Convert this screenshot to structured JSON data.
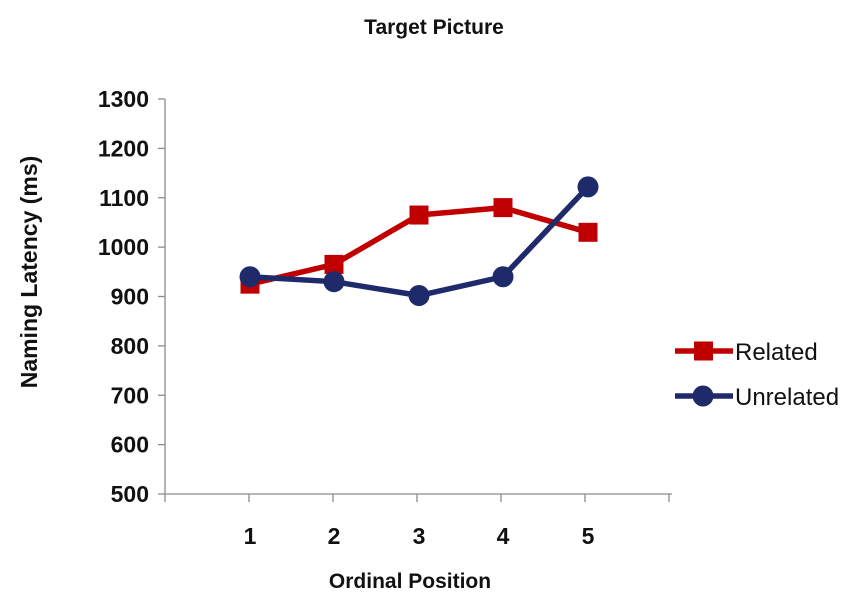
{
  "chart_data": {
    "type": "line",
    "title": "Target Picture",
    "xlabel": "Ordinal Position",
    "ylabel": "Naming Latency (ms)",
    "categories": [
      "1",
      "2",
      "3",
      "4",
      "5"
    ],
    "ylim": [
      500,
      1300
    ],
    "yticks": [
      "500",
      "600",
      "700",
      "800",
      "900",
      "1000",
      "1100",
      "1200",
      "1300"
    ],
    "grid": false,
    "legend_position": "right",
    "series": [
      {
        "name": "Related",
        "values": [
          925,
          965,
          1065,
          1080,
          1030
        ],
        "color": "#c00000",
        "marker": "square"
      },
      {
        "name": "Unrelated",
        "values": [
          940,
          930,
          902,
          940,
          1122
        ],
        "color": "#1f2a6b",
        "marker": "circle"
      }
    ]
  }
}
